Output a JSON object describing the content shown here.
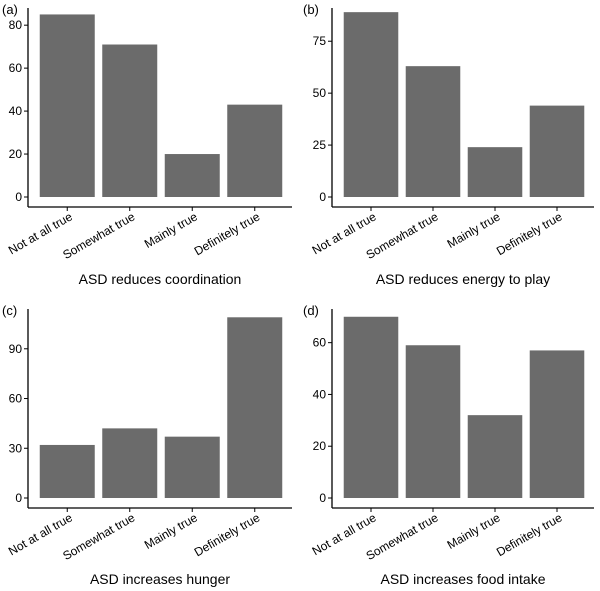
{
  "bar_color": "#6b6b6b",
  "chart_data": [
    {
      "type": "bar",
      "panel": "(a)",
      "categories": [
        "Not at all true",
        "Somewhat true",
        "Mainly true",
        "Definitely true"
      ],
      "values": [
        85,
        71,
        20,
        43
      ],
      "xlabel": "ASD reduces coordination",
      "ylabel": "",
      "ylim": [
        0,
        88
      ],
      "yticks": [
        0,
        20,
        40,
        60,
        80
      ],
      "legend": "none",
      "grid": false
    },
    {
      "type": "bar",
      "panel": "(b)",
      "categories": [
        "Not at all true",
        "Somewhat true",
        "Mainly true",
        "Definitely true"
      ],
      "values": [
        89,
        63,
        24,
        44
      ],
      "xlabel": "ASD reduces energy to play",
      "ylabel": "",
      "ylim": [
        0,
        91
      ],
      "yticks": [
        0,
        25,
        50,
        75
      ],
      "legend": "none",
      "grid": false
    },
    {
      "type": "bar",
      "panel": "(c)",
      "categories": [
        "Not at all true",
        "Somewhat true",
        "Mainly true",
        "Definitely true"
      ],
      "values": [
        32,
        42,
        37,
        109
      ],
      "xlabel": "ASD increases hunger",
      "ylabel": "",
      "ylim": [
        0,
        114
      ],
      "yticks": [
        0,
        30,
        60,
        90
      ],
      "legend": "none",
      "grid": false
    },
    {
      "type": "bar",
      "panel": "(d)",
      "categories": [
        "Not at all true",
        "Somewhat true",
        "Mainly true",
        "Definitely true"
      ],
      "values": [
        70,
        59,
        32,
        57
      ],
      "xlabel": "ASD increases food intake",
      "ylabel": "",
      "ylim": [
        0,
        73
      ],
      "yticks": [
        0,
        20,
        40,
        60
      ],
      "legend": "none",
      "grid": false
    }
  ]
}
